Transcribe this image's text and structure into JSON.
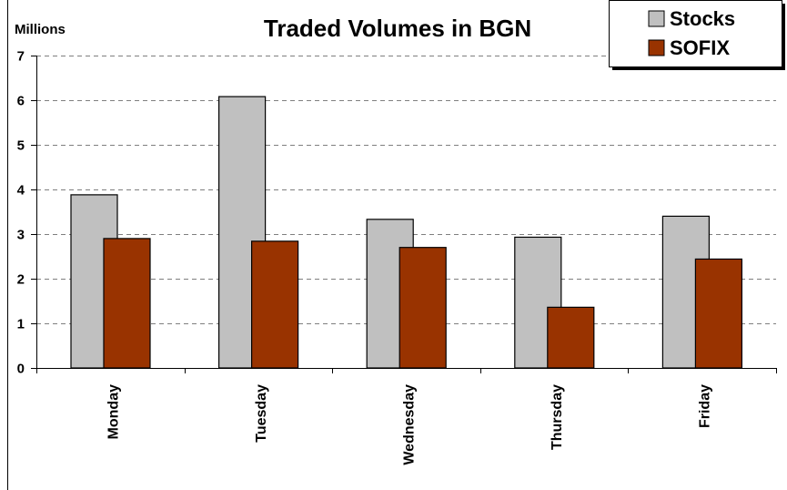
{
  "chart_data": {
    "type": "bar",
    "title": "Traded Volumes in BGN",
    "unit_label": "Millions",
    "xlabel": "",
    "ylabel": "",
    "categories": [
      "Monday",
      "Tuesday",
      "Wednesday",
      "Thursday",
      "Friday"
    ],
    "series": [
      {
        "name": "Stocks",
        "color": "#c0c0c0",
        "values": [
          3.88,
          6.08,
          3.33,
          2.93,
          3.4
        ]
      },
      {
        "name": "SOFIX",
        "color": "#993300",
        "values": [
          2.9,
          2.84,
          2.7,
          1.36,
          2.44
        ]
      }
    ],
    "ylim": [
      0,
      7
    ],
    "yticks": [
      "0",
      "1",
      "2",
      "3",
      "4",
      "5",
      "6",
      "7"
    ],
    "grid": "horizontal dashed",
    "legend_position": "top-right"
  }
}
